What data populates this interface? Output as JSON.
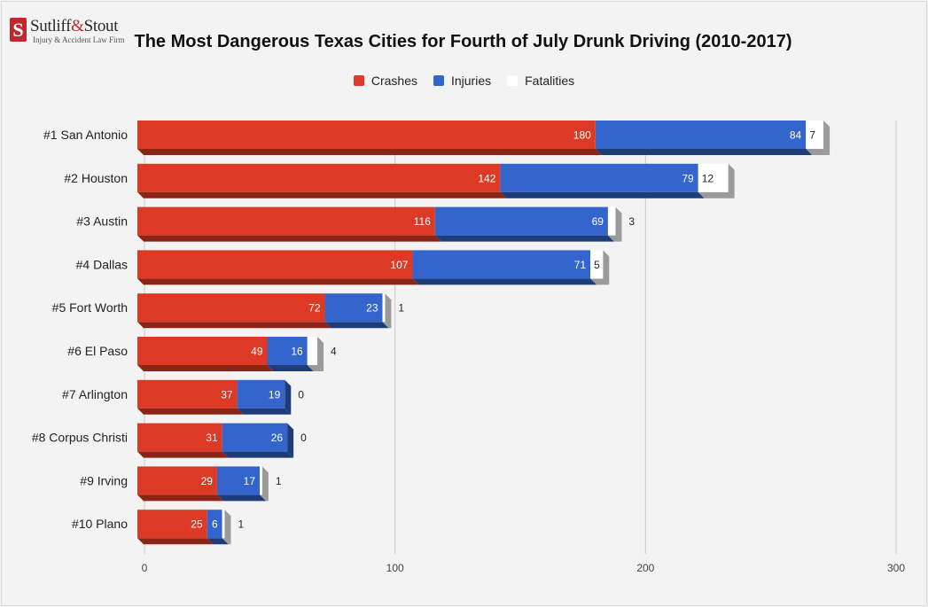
{
  "brand": {
    "name_part1": "Sutliff",
    "name_amp": "&",
    "name_part2": "Stout",
    "tagline": "Injury & Accident Law Firm"
  },
  "colors": {
    "crashes": "#dc3a25",
    "injuries": "#3465cc",
    "fatalities": "#ffffff"
  },
  "chart_data": {
    "type": "bar",
    "orientation": "horizontal",
    "stacked": true,
    "title": "The Most Dangerous Texas Cities for Fourth of July Drunk Driving (2010-2017)",
    "categories": [
      "#1 San Antonio",
      "#2 Houston",
      "#3 Austin",
      "#4 Dallas",
      "#5 Fort Worth",
      "#6 El Paso",
      "#7 Arlington",
      "#8 Corpus Christi",
      "#9 Irving",
      "#10 Plano"
    ],
    "series": [
      {
        "name": "Crashes",
        "color": "#dc3a25",
        "values": [
          180,
          142,
          116,
          107,
          72,
          49,
          37,
          31,
          29,
          25
        ]
      },
      {
        "name": "Injuries",
        "color": "#3465cc",
        "values": [
          84,
          79,
          69,
          71,
          23,
          16,
          19,
          26,
          17,
          6
        ]
      },
      {
        "name": "Fatalities",
        "color": "#ffffff",
        "values": [
          7,
          12,
          3,
          5,
          1,
          4,
          0,
          0,
          1,
          1
        ]
      }
    ],
    "xlim": [
      0,
      300
    ],
    "x_ticks": [
      "0",
      "100",
      "200",
      "300"
    ],
    "grid": true,
    "legend_position": "top"
  }
}
